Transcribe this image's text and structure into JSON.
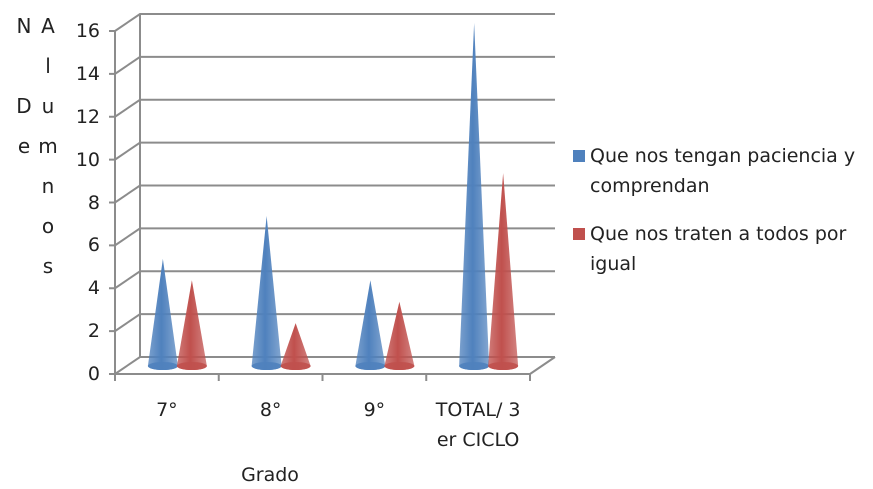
{
  "chart_data": {
    "type": "cone3d",
    "y_label": "N De Alumnos",
    "x_label": "Grado",
    "categories": [
      "7°",
      "8°",
      "9°",
      "TOTAL/ 3 er CICLO"
    ],
    "series": [
      {
        "name": "Que nos tengan paciencia y comprendan",
        "color": "#4f81bd",
        "values": [
          5,
          7,
          4,
          16
        ]
      },
      {
        "name": "Que nos traten a todos por igual",
        "color": "#c0504d",
        "values": [
          4,
          2,
          3,
          9
        ]
      }
    ],
    "ylim": [
      0,
      16
    ],
    "yticks": [
      0,
      2,
      4,
      6,
      8,
      10,
      12,
      14,
      16
    ],
    "grid": true,
    "legend": "right"
  }
}
